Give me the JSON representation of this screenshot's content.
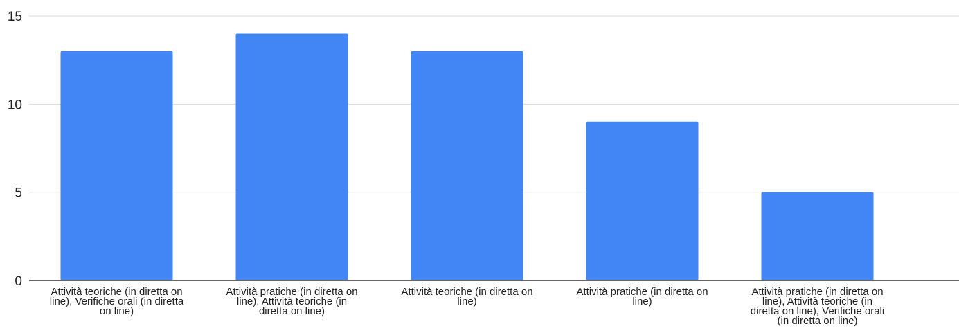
{
  "chart_data": {
    "type": "bar",
    "title": "",
    "xlabel": "",
    "ylabel": "",
    "ylim": [
      0,
      15
    ],
    "yticks": [
      0,
      5,
      10,
      15
    ],
    "grid": true,
    "legend": "none",
    "bar_color": "#4285f4",
    "categories": [
      [
        "Attività teoriche (in diretta on",
        "line), Verifiche orali (in diretta",
        "on line)"
      ],
      [
        "Attività pratiche (in diretta on",
        "line), Attività teoriche (in",
        "diretta on line)"
      ],
      [
        "Attività teoriche (in diretta on",
        "line)"
      ],
      [
        "Attività pratiche (in diretta on",
        "line)"
      ],
      [
        "Attività pratiche (in diretta on",
        "line), Attività teoriche (in",
        "diretta on line), Verifiche orali",
        "(in diretta on line)"
      ]
    ],
    "values": [
      13,
      14,
      13,
      9,
      5
    ]
  }
}
